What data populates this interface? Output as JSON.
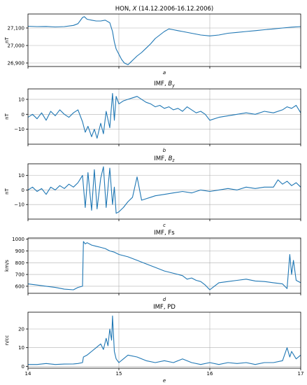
{
  "chart_data": [
    {
      "type": "line",
      "title": "HON, X (14.12.2006-16.12.2006)",
      "title_parts": [
        "HON, ",
        "X",
        " (14.12.2006-16.12.2006)"
      ],
      "xlabel": "a",
      "ylabel": "nT",
      "xlim": [
        14,
        17
      ],
      "ylim": [
        26880,
        27180
      ],
      "yticks": [
        26900,
        27000,
        27100
      ],
      "ytick_labels": [
        "26,900",
        "27,000",
        "27,100"
      ],
      "grid": true,
      "series": [
        {
          "color": "#1f77b4",
          "x": [
            14.0,
            14.1,
            14.2,
            14.3,
            14.4,
            14.5,
            14.55,
            14.6,
            14.62,
            14.65,
            14.7,
            14.75,
            14.8,
            14.85,
            14.9,
            14.93,
            14.95,
            14.97,
            15.0,
            15.03,
            15.06,
            15.1,
            15.13,
            15.16,
            15.2,
            15.25,
            15.3,
            15.35,
            15.4,
            15.45,
            15.5,
            15.55,
            15.6,
            15.65,
            15.7,
            15.8,
            15.9,
            16.0,
            16.1,
            16.2,
            16.3,
            16.4,
            16.5,
            16.6,
            16.7,
            16.8,
            16.9,
            17.0
          ],
          "y": [
            27110,
            27108,
            27109,
            27106,
            27108,
            27115,
            27125,
            27160,
            27165,
            27150,
            27145,
            27140,
            27140,
            27145,
            27130,
            27080,
            27020,
            26980,
            26950,
            26920,
            26900,
            26890,
            26905,
            26920,
            26940,
            26960,
            26985,
            27010,
            27040,
            27060,
            27080,
            27095,
            27090,
            27085,
            27080,
            27070,
            27060,
            27055,
            27060,
            27070,
            27075,
            27080,
            27085,
            27090,
            27095,
            27100,
            27105,
            27108
          ]
        }
      ]
    },
    {
      "type": "line",
      "title": "IMF, By",
      "title_parts": [
        "IMF, ",
        "B",
        "y"
      ],
      "xlabel": "b",
      "ylabel": "nT",
      "xlim": [
        14,
        17
      ],
      "ylim": [
        -20,
        17
      ],
      "yticks": [
        -10,
        0,
        10
      ],
      "ytick_labels": [
        "−10",
        "0",
        "10"
      ],
      "grid": true,
      "series": [
        {
          "color": "#1f77b4",
          "x": [
            14.0,
            14.05,
            14.1,
            14.15,
            14.2,
            14.25,
            14.3,
            14.35,
            14.4,
            14.45,
            14.5,
            14.55,
            14.6,
            14.63,
            14.66,
            14.7,
            14.73,
            14.76,
            14.8,
            14.83,
            14.86,
            14.9,
            14.93,
            14.95,
            14.97,
            15.0,
            15.05,
            15.1,
            15.15,
            15.2,
            15.25,
            15.3,
            15.35,
            15.4,
            15.45,
            15.5,
            15.55,
            15.6,
            15.65,
            15.7,
            15.75,
            15.8,
            15.85,
            15.9,
            15.95,
            16.0,
            16.1,
            16.2,
            16.3,
            16.4,
            16.5,
            16.6,
            16.7,
            16.8,
            16.85,
            16.9,
            16.95,
            17.0
          ],
          "y": [
            -2,
            0,
            -3,
            1,
            -4,
            2,
            -1,
            3,
            0,
            -2,
            1,
            3,
            -5,
            -12,
            -8,
            -15,
            -10,
            -16,
            -6,
            -13,
            2,
            -9,
            14,
            -4,
            12,
            7,
            9,
            10,
            11,
            12,
            10,
            8,
            7,
            5,
            6,
            4,
            5,
            3,
            4,
            2,
            5,
            3,
            1,
            2,
            0,
            -4,
            -2,
            -1,
            0,
            1,
            0,
            2,
            1,
            3,
            5,
            4,
            6,
            1
          ]
        }
      ]
    },
    {
      "type": "line",
      "title": "IMF, Bz",
      "title_parts": [
        "IMF, ",
        "B",
        "z"
      ],
      "xlabel": "c",
      "ylabel": "nT",
      "xlim": [
        14,
        17
      ],
      "ylim": [
        -20,
        18
      ],
      "yticks": [
        -10,
        0,
        10
      ],
      "ytick_labels": [
        "−10",
        "0",
        "10"
      ],
      "grid": true,
      "series": [
        {
          "color": "#1f77b4",
          "x": [
            14.0,
            14.05,
            14.1,
            14.15,
            14.2,
            14.25,
            14.3,
            14.35,
            14.4,
            14.45,
            14.5,
            14.55,
            14.6,
            14.63,
            14.66,
            14.7,
            14.73,
            14.76,
            14.8,
            14.83,
            14.86,
            14.9,
            14.93,
            14.95,
            14.97,
            15.0,
            15.05,
            15.1,
            15.15,
            15.2,
            15.25,
            15.3,
            15.35,
            15.4,
            15.5,
            15.6,
            15.7,
            15.8,
            15.9,
            16.0,
            16.1,
            16.2,
            16.3,
            16.4,
            16.5,
            16.6,
            16.7,
            16.75,
            16.8,
            16.85,
            16.9,
            16.95,
            17.0
          ],
          "y": [
            0,
            2,
            -1,
            1,
            -3,
            2,
            0,
            3,
            1,
            4,
            2,
            5,
            10,
            -12,
            12,
            -14,
            14,
            -13,
            8,
            16,
            -12,
            15,
            -10,
            2,
            -16,
            -15,
            -12,
            -8,
            -5,
            9,
            -7,
            -6,
            -5,
            -4,
            -3,
            -2,
            -1,
            -2,
            0,
            -1,
            0,
            1,
            0,
            2,
            1,
            2,
            2,
            7,
            4,
            6,
            3,
            5,
            2
          ]
        }
      ]
    },
    {
      "type": "line",
      "title": "IMF, Fs",
      "title_parts": [
        "IMF, Fs"
      ],
      "xlabel": "d",
      "ylabel": "km/s",
      "xlim": [
        14,
        17
      ],
      "ylim": [
        540,
        1010
      ],
      "yticks": [
        600,
        700,
        800,
        900,
        1000
      ],
      "ytick_labels": [
        "600",
        "700",
        "800",
        "900",
        "1000"
      ],
      "grid": true,
      "xticks": [
        14,
        15,
        16,
        17
      ],
      "xtick_labels": [
        "14",
        "15",
        "16",
        "17"
      ],
      "series": [
        {
          "color": "#1f77b4",
          "x": [
            14.0,
            14.1,
            14.2,
            14.3,
            14.4,
            14.5,
            14.55,
            14.6,
            14.61,
            14.63,
            14.65,
            14.7,
            14.75,
            14.8,
            14.85,
            14.9,
            14.95,
            15.0,
            15.1,
            15.2,
            15.3,
            15.4,
            15.5,
            15.6,
            15.7,
            15.75,
            15.8,
            15.85,
            15.9,
            15.95,
            16.0,
            16.05,
            16.1,
            16.2,
            16.3,
            16.4,
            16.5,
            16.6,
            16.7,
            16.8,
            16.85,
            16.88,
            16.9,
            16.92,
            16.95,
            17.0
          ],
          "y": [
            620,
            610,
            600,
            590,
            575,
            570,
            590,
            600,
            980,
            960,
            970,
            950,
            940,
            930,
            920,
            900,
            890,
            870,
            850,
            820,
            790,
            760,
            730,
            710,
            690,
            660,
            670,
            650,
            640,
            610,
            570,
            600,
            630,
            640,
            650,
            660,
            645,
            640,
            630,
            620,
            580,
            870,
            700,
            820,
            650,
            630
          ]
        }
      ]
    },
    {
      "type": "line",
      "title": "IMF, PD",
      "title_parts": [
        "IMF, PD"
      ],
      "xlabel": "e",
      "ylabel": "n/cc",
      "xlim": [
        14,
        17
      ],
      "ylim": [
        -1,
        29
      ],
      "yticks": [
        0,
        10,
        20
      ],
      "ytick_labels": [
        "0",
        "10",
        "20"
      ],
      "grid": true,
      "xticks": [
        14,
        15,
        16,
        17
      ],
      "xtick_labels": [
        "14",
        "15",
        "16",
        "17"
      ],
      "series": [
        {
          "color": "#1f77b4",
          "x": [
            14.0,
            14.1,
            14.2,
            14.3,
            14.4,
            14.5,
            14.55,
            14.6,
            14.61,
            14.65,
            14.7,
            14.75,
            14.8,
            14.83,
            14.86,
            14.88,
            14.9,
            14.92,
            14.93,
            14.95,
            14.97,
            15.0,
            15.05,
            15.1,
            15.2,
            15.3,
            15.4,
            15.5,
            15.6,
            15.7,
            15.8,
            15.9,
            16.0,
            16.1,
            16.2,
            16.3,
            16.4,
            16.5,
            16.6,
            16.7,
            16.8,
            16.85,
            16.88,
            16.9,
            16.95,
            17.0
          ],
          "y": [
            1,
            1,
            1.5,
            1,
            1.2,
            1.3,
            1.5,
            2,
            5,
            6,
            8,
            10,
            12,
            9,
            15,
            11,
            20,
            14,
            27,
            8,
            4,
            2,
            4,
            6,
            5,
            3,
            2,
            3,
            2,
            4,
            2,
            1,
            2,
            1,
            2,
            1.5,
            2,
            1,
            2,
            2,
            3,
            10,
            5,
            8,
            4,
            6
          ]
        }
      ]
    }
  ]
}
